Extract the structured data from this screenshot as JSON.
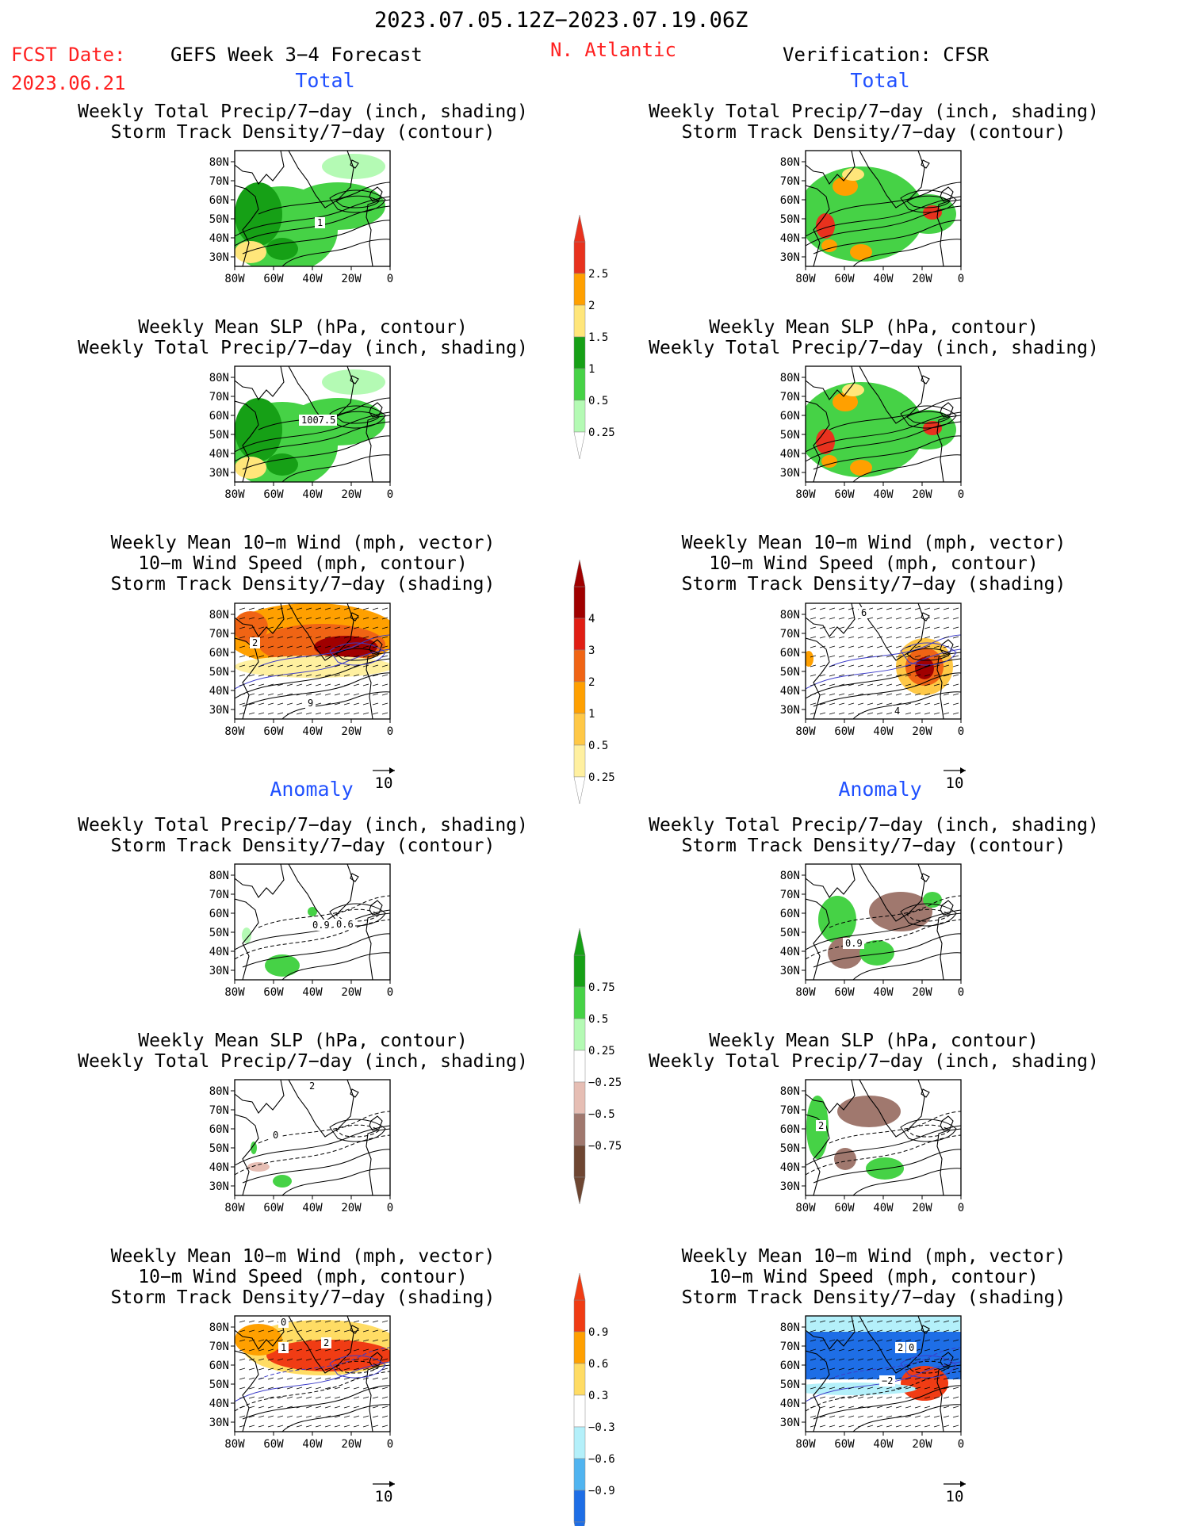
{
  "header": {
    "date_range": "2023.07.05.12Z−2023.07.19.06Z",
    "fcst_label": "FCST Date:",
    "fcst_date": "2023.06.21",
    "forecast_title": "GEFS Week 3−4 Forecast",
    "region": "N. Atlantic",
    "verification": "Verification: CFSR"
  },
  "sections": {
    "total": "Total",
    "anomaly": "Anomaly"
  },
  "panel_titles": {
    "precip_track": [
      "Weekly Total Precip/7−day (inch, shading)",
      "Storm Track Density/7−day (contour)"
    ],
    "slp_precip": [
      "Weekly Mean SLP (hPa, contour)",
      "Weekly Total Precip/7−day (inch, shading)"
    ],
    "wind_track": [
      "Weekly Mean 10−m Wind (mph, vector)",
      "10−m Wind Speed (mph, contour)",
      "Storm Track Density/7−day (shading)"
    ]
  },
  "axes": {
    "lat_ticks": [
      "80N",
      "70N",
      "60N",
      "50N",
      "40N",
      "30N"
    ],
    "lon_ticks": [
      "80W",
      "60W",
      "40W",
      "20W",
      "0"
    ],
    "vector_ref": "10"
  },
  "contour_labels": {
    "fcst_total_precip": "1",
    "fcst_total_slp": "1007.5",
    "fcst_total_wind_a": "2",
    "fcst_total_wind_b": "9",
    "verif_total_wind_a": "6",
    "verif_total_wind_b": "4",
    "fcst_anom_precip_a": "0.9",
    "fcst_anom_precip_b": "0.6",
    "verif_anom_precip": "0.9",
    "fcst_anom_slp_a": "2",
    "fcst_anom_slp_b": "0",
    "verif_anom_slp": "2",
    "fcst_anom_wind_a": "0",
    "fcst_anom_wind_b": "1",
    "fcst_anom_wind_c": "2",
    "verif_anom_wind_a": "2",
    "verif_anom_wind_b": "0",
    "verif_anom_wind_c": "−2"
  },
  "colorbars": {
    "precip_total": {
      "labels": [
        "2.5",
        "2",
        "1.5",
        "1",
        "0.5",
        "0.25"
      ],
      "colors": [
        "#e8321e",
        "#ffa000",
        "#ffe67a",
        "#16a016",
        "#46d246",
        "#b4fab4"
      ]
    },
    "track_total": {
      "labels": [
        "4",
        "3",
        "2",
        "1",
        "0.5",
        "0.25"
      ],
      "colors": [
        "#a00000",
        "#e01e14",
        "#f06414",
        "#ffa000",
        "#ffc846",
        "#fff0a0"
      ]
    },
    "precip_anom": {
      "labels": [
        "0.75",
        "0.5",
        "0.25",
        "−0.25",
        "−0.5",
        "−0.75"
      ],
      "colors": [
        "#16a016",
        "#46d246",
        "#b4fab4",
        "#ffffff",
        "#e6beb4",
        "#a0786e",
        "#6e4632"
      ]
    },
    "track_anom": {
      "labels": [
        "0.9",
        "0.6",
        "0.3",
        "−0.3",
        "−0.6",
        "−0.9"
      ],
      "colors": [
        "#f03c14",
        "#ffa000",
        "#ffdc64",
        "#ffffff",
        "#b4f0fa",
        "#50b4f0",
        "#1e6ee6"
      ]
    }
  },
  "colors": {
    "title_red": "#ff2020",
    "section_blue": "#2050ff"
  }
}
